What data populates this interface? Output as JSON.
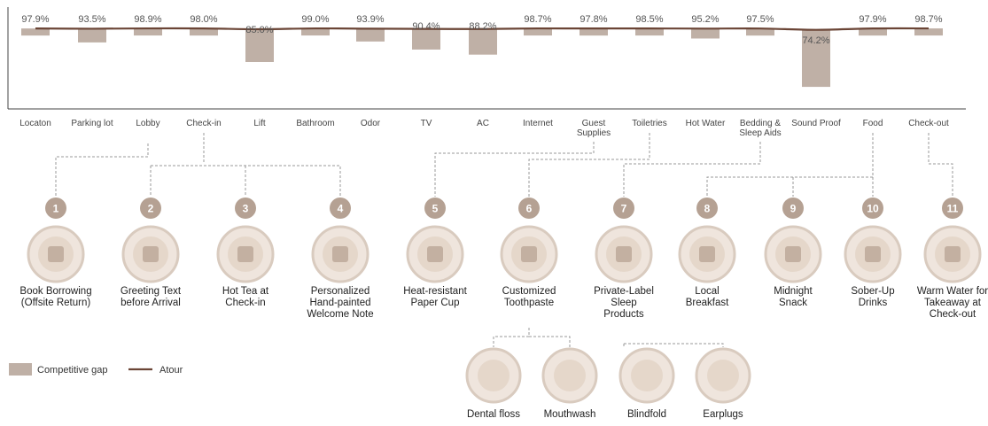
{
  "colors": {
    "bar": "#bfb0a6",
    "line": "#6b4536",
    "circle_num": "#b5a193",
    "icon_bg": "#efe5dd",
    "icon_ring": "#d9cbbf",
    "connector": "#999999",
    "axis": "#444444"
  },
  "chart_data": {
    "type": "bar",
    "categories": [
      "Locaton",
      "Parking lot",
      "Lobby",
      "Check-in",
      "Lift",
      "Bathroom",
      "Odor",
      "TV",
      "AC",
      "Internet",
      "Guest Supplies",
      "Toiletries",
      "Hot Water",
      "Bedding & Sleep Aids",
      "Sound Proof",
      "Food",
      "Check-out"
    ],
    "category_lines": [
      [
        "Locaton"
      ],
      [
        "Parking lot"
      ],
      [
        "Lobby"
      ],
      [
        "Check-in"
      ],
      [
        "Lift"
      ],
      [
        "Bathroom"
      ],
      [
        "Odor"
      ],
      [
        "TV"
      ],
      [
        "AC"
      ],
      [
        "Internet"
      ],
      [
        "Guest",
        "Supplies"
      ],
      [
        "Toiletries"
      ],
      [
        "Hot Water"
      ],
      [
        "Bedding &",
        "Sleep Aids"
      ],
      [
        "Sound Proof"
      ],
      [
        "Food"
      ],
      [
        "Check-out"
      ]
    ],
    "series": [
      {
        "name": "Atour",
        "type": "line",
        "values": [
          97.9,
          93.5,
          98.9,
          98.0,
          85.0,
          99.0,
          93.9,
          90.4,
          88.2,
          98.7,
          97.8,
          98.5,
          95.2,
          97.5,
          74.2,
          97.9,
          98.7
        ]
      },
      {
        "name": "Competitive gap",
        "type": "bar",
        "values": [
          97.9,
          93.5,
          98.9,
          98.0,
          85.0,
          99.0,
          93.9,
          90.4,
          88.2,
          98.7,
          97.8,
          98.5,
          95.2,
          97.5,
          74.2,
          97.9,
          98.7
        ]
      }
    ],
    "data_labels": [
      "97.9%",
      "93.5%",
      "98.9%",
      "98.0%",
      "85.0%",
      "99.0%",
      "93.9%",
      "90.4%",
      "88.2%",
      "98.7%",
      "97.8%",
      "98.5%",
      "95.2%",
      "97.5%",
      "74.2%",
      "97.9%",
      "98.7%"
    ],
    "ylim": [
      70,
      100
    ],
    "legend": [
      "Competitive gap",
      "Atour"
    ],
    "legend_position": "bottom-left",
    "grid": false
  },
  "items": [
    {
      "num": "1",
      "lines": [
        "Book Borrowing",
        "(Offsite Return)"
      ],
      "icon": "book-borrowing-icon"
    },
    {
      "num": "2",
      "lines": [
        "Greeting Text",
        "before Arrival"
      ],
      "icon": "greeting-text-icon"
    },
    {
      "num": "3",
      "lines": [
        "Hot Tea at",
        "Check-in"
      ],
      "icon": "hot-tea-icon"
    },
    {
      "num": "4",
      "lines": [
        "Personalized",
        "Hand-painted",
        "Welcome Note"
      ],
      "icon": "welcome-note-icon"
    },
    {
      "num": "5",
      "lines": [
        "Heat-resistant",
        "Paper Cup"
      ],
      "icon": "paper-cup-icon"
    },
    {
      "num": "6",
      "lines": [
        "Customized",
        "Toothpaste"
      ],
      "icon": "toothpaste-icon"
    },
    {
      "num": "7",
      "lines": [
        "Private-Label",
        "Sleep",
        "Products"
      ],
      "icon": "sleep-products-icon"
    },
    {
      "num": "8",
      "lines": [
        "Local",
        "Breakfast"
      ],
      "icon": "breakfast-icon"
    },
    {
      "num": "9",
      "lines": [
        "Midnight",
        "Snack"
      ],
      "icon": "midnight-snack-icon"
    },
    {
      "num": "10",
      "lines": [
        "Sober-Up",
        "Drinks"
      ],
      "icon": "sober-up-drinks-icon"
    },
    {
      "num": "11",
      "lines": [
        "Warm Water for",
        "Takeaway at",
        "Check-out"
      ],
      "icon": "warm-water-icon"
    }
  ],
  "sub_items": [
    {
      "label": "Dental floss",
      "icon": "dental-floss-icon"
    },
    {
      "label": "Mouthwash",
      "icon": "mouthwash-icon"
    },
    {
      "label": "Blindfold",
      "icon": "blindfold-icon"
    },
    {
      "label": "Earplugs",
      "icon": "earplugs-icon"
    }
  ]
}
